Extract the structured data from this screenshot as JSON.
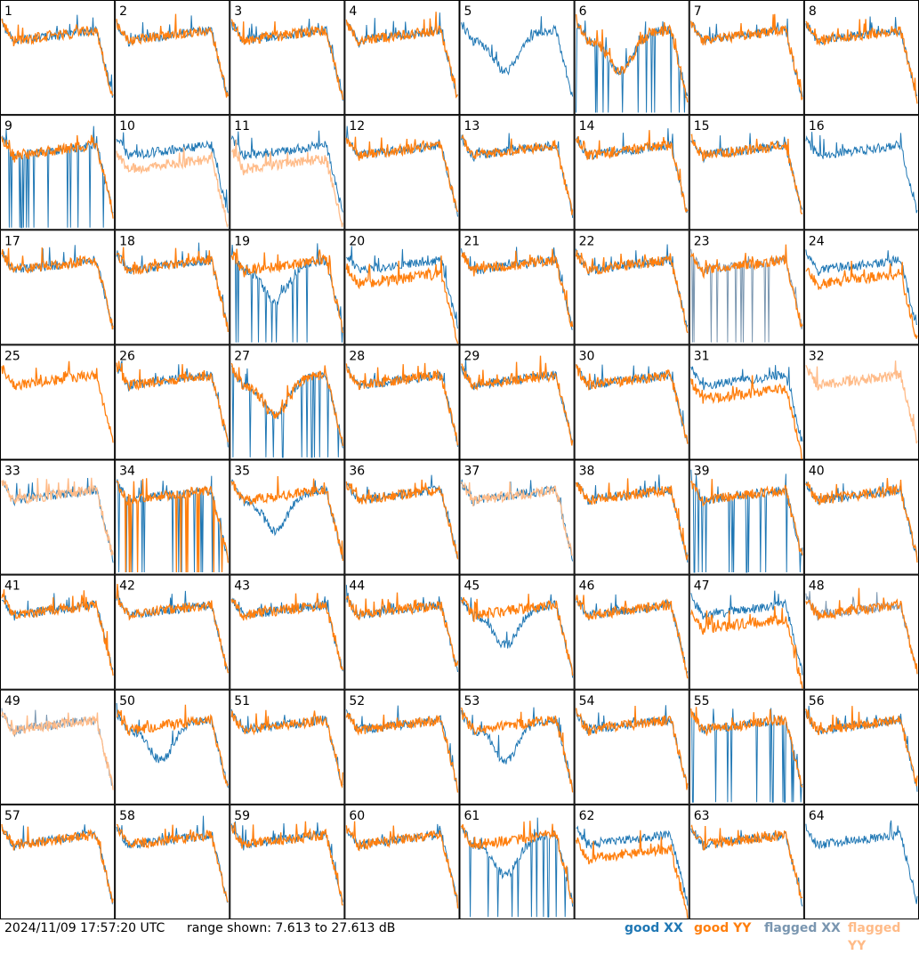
{
  "chart_data": {
    "type": "line",
    "layout": "8x8 grid of small multiples",
    "panel_count": 64,
    "panel_labels": [
      "1",
      "2",
      "3",
      "4",
      "5",
      "6",
      "7",
      "8",
      "9",
      "10",
      "11",
      "12",
      "13",
      "14",
      "15",
      "16",
      "17",
      "18",
      "19",
      "20",
      "21",
      "22",
      "23",
      "24",
      "25",
      "26",
      "27",
      "28",
      "29",
      "30",
      "31",
      "32",
      "33",
      "34",
      "35",
      "36",
      "37",
      "38",
      "39",
      "40",
      "41",
      "42",
      "43",
      "44",
      "45",
      "46",
      "47",
      "48",
      "49",
      "50",
      "51",
      "52",
      "53",
      "54",
      "55",
      "56",
      "57",
      "58",
      "59",
      "60",
      "61",
      "62",
      "63",
      "64"
    ],
    "ylim": [
      7.613,
      27.613
    ],
    "yunit": "dB",
    "series": [
      {
        "name": "good XX",
        "color": "#1f77b4"
      },
      {
        "name": "good YY",
        "color": "#ff7f0e"
      },
      {
        "name": "flagged XX",
        "color": "#7a96b0"
      },
      {
        "name": "flagged YY",
        "color": "#ffbb88"
      }
    ],
    "panels": {
      "xx_flagged": [
        23,
        48,
        49
      ],
      "yy_flagged": [
        10,
        11,
        32,
        33,
        37,
        49
      ],
      "xx_only": [
        5,
        16,
        64
      ],
      "yy_only": [
        25,
        32
      ],
      "yy_shape_noise": [
        23
      ],
      "xx_noise_flagged": [
        23
      ],
      "xx_dropouts": [
        6,
        9,
        19,
        27,
        34,
        39,
        55,
        61
      ],
      "yy_dropouts": [
        16,
        34,
        64
      ]
    }
  },
  "footer": {
    "timestamp": "2024/11/09 17:57:20 UTC",
    "range_text": "range shown: 7.613 to 27.613 dB",
    "legend": {
      "good_xx": "good XX",
      "good_yy": "good YY",
      "flagged_xx": "flagged XX",
      "flagged_yy": "flagged YY"
    }
  }
}
